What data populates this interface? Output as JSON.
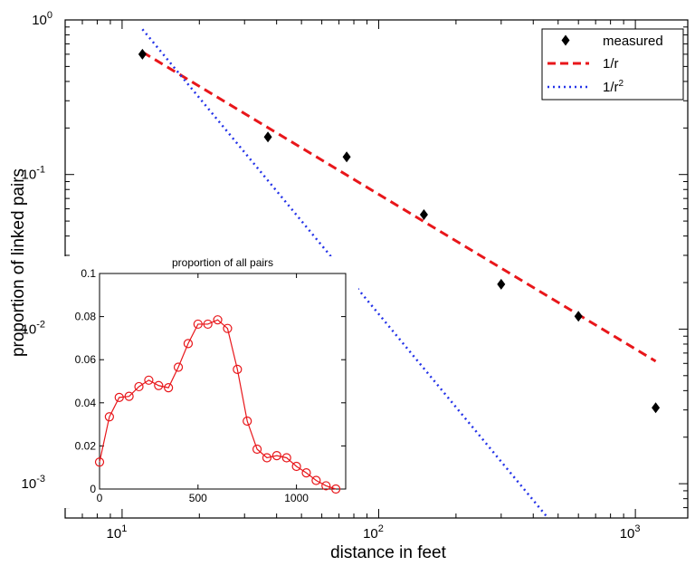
{
  "chart_data": [
    {
      "type": "scatter",
      "title": "",
      "xlabel": "distance in feet",
      "ylabel": "proportion of linked pairs",
      "xscale": "log",
      "yscale": "log",
      "xlim": [
        6,
        1600
      ],
      "ylim": [
        0.0006,
        1
      ],
      "x_ticks": [
        {
          "value": 10,
          "base": "10",
          "exp": "1"
        },
        {
          "value": 100,
          "base": "10",
          "exp": "2"
        },
        {
          "value": 1000,
          "base": "10",
          "exp": "3"
        }
      ],
      "y_ticks": [
        {
          "value": 0.001,
          "base": "10",
          "exp": "-3"
        },
        {
          "value": 0.01,
          "base": "10",
          "exp": "-2"
        },
        {
          "value": 0.1,
          "base": "10",
          "exp": "-1"
        },
        {
          "value": 1,
          "base": "10",
          "exp": "0"
        }
      ],
      "grid": false,
      "legend_position": "top-right",
      "series": [
        {
          "name": "measured",
          "style": "markers",
          "marker": "diamond",
          "color": "#000000",
          "x": [
            12,
            37,
            75,
            150,
            300,
            600,
            1200
          ],
          "y": [
            0.6,
            0.175,
            0.13,
            0.055,
            0.0195,
            0.0121,
            0.0031
          ]
        },
        {
          "name": "1/r",
          "style": "dashed",
          "color": "#e8161a",
          "x": [
            12,
            1200
          ],
          "y": [
            0.62,
            0.0062
          ]
        },
        {
          "name": "1/r",
          "name_superscript": "2",
          "style": "dotted",
          "color": "#2433e8",
          "x": [
            12,
            500
          ],
          "y": [
            0.87,
            0.0005
          ]
        }
      ]
    },
    {
      "type": "line",
      "title": "proportion of all pairs",
      "xlabel": "",
      "ylabel": "",
      "xlim": [
        0,
        1250
      ],
      "ylim": [
        0,
        0.1
      ],
      "x_ticks": [
        0,
        500,
        1000
      ],
      "x_tick_labels": [
        "0",
        "500",
        "1000"
      ],
      "y_ticks": [
        0,
        0.02,
        0.04,
        0.06,
        0.08,
        0.1
      ],
      "y_tick_labels": [
        "0",
        "0.02",
        "0.04",
        "0.06",
        "0.08",
        "0.1"
      ],
      "grid": false,
      "series": [
        {
          "style": "line-circles",
          "color": "#e8161a",
          "x": [
            0,
            50,
            100,
            150,
            200,
            250,
            300,
            350,
            400,
            450,
            500,
            550,
            600,
            650,
            700,
            750,
            800,
            850,
            900,
            950,
            1000,
            1050,
            1100,
            1150,
            1200
          ],
          "y": [
            0.0125,
            0.0335,
            0.0425,
            0.043,
            0.0475,
            0.0505,
            0.048,
            0.047,
            0.0565,
            0.0675,
            0.0765,
            0.0765,
            0.0785,
            0.0745,
            0.0555,
            0.0315,
            0.0185,
            0.0145,
            0.0155,
            0.0145,
            0.0105,
            0.0075,
            0.004,
            0.0015,
            0.0
          ]
        }
      ]
    }
  ]
}
